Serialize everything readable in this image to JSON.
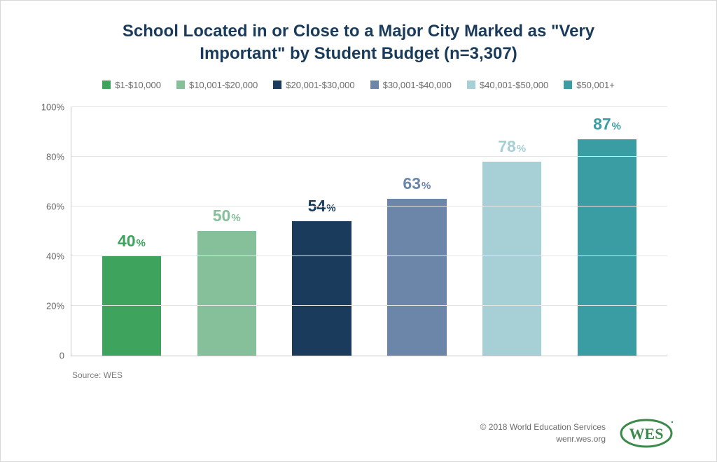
{
  "chart": {
    "type": "bar",
    "title": "School Located in or Close to a Major City Marked as \"Very Important\" by Student Budget (n=3,307)",
    "title_color": "#1a3b5c",
    "title_fontsize": 24,
    "categories": [
      "$1-$10,000",
      "$10,001-$20,000",
      "$20,001-$30,000",
      "$30,001-$40,000",
      "$40,001-$50,000",
      "$50,001+"
    ],
    "values": [
      40,
      50,
      54,
      63,
      78,
      87
    ],
    "bar_colors": [
      "#3da35d",
      "#85c09a",
      "#1a3b5c",
      "#6b86a8",
      "#a7cfd6",
      "#3a9da3"
    ],
    "label_colors": [
      "#3da35d",
      "#85c09a",
      "#1a3b5c",
      "#6b86a8",
      "#a7cfd6",
      "#3a9da3"
    ],
    "legend_text_color": "#6b6b6b",
    "ylim": [
      0,
      100
    ],
    "ytick_step": 20,
    "y_ticks": [
      "0",
      "20%",
      "40%",
      "60%",
      "80%",
      "100%"
    ],
    "grid_color": "#e5e5e5",
    "axis_color": "#c9c9c9",
    "background_color": "#ffffff",
    "bar_width": 0.62,
    "value_label_fontsize": 23,
    "value_pct_fontsize": 15
  },
  "source": "Source: WES",
  "footer": {
    "copyright": "© 2018 World Education Services",
    "site": "wenr.wes.org",
    "logo_text": "WES",
    "logo_color": "#3c8a4a"
  }
}
